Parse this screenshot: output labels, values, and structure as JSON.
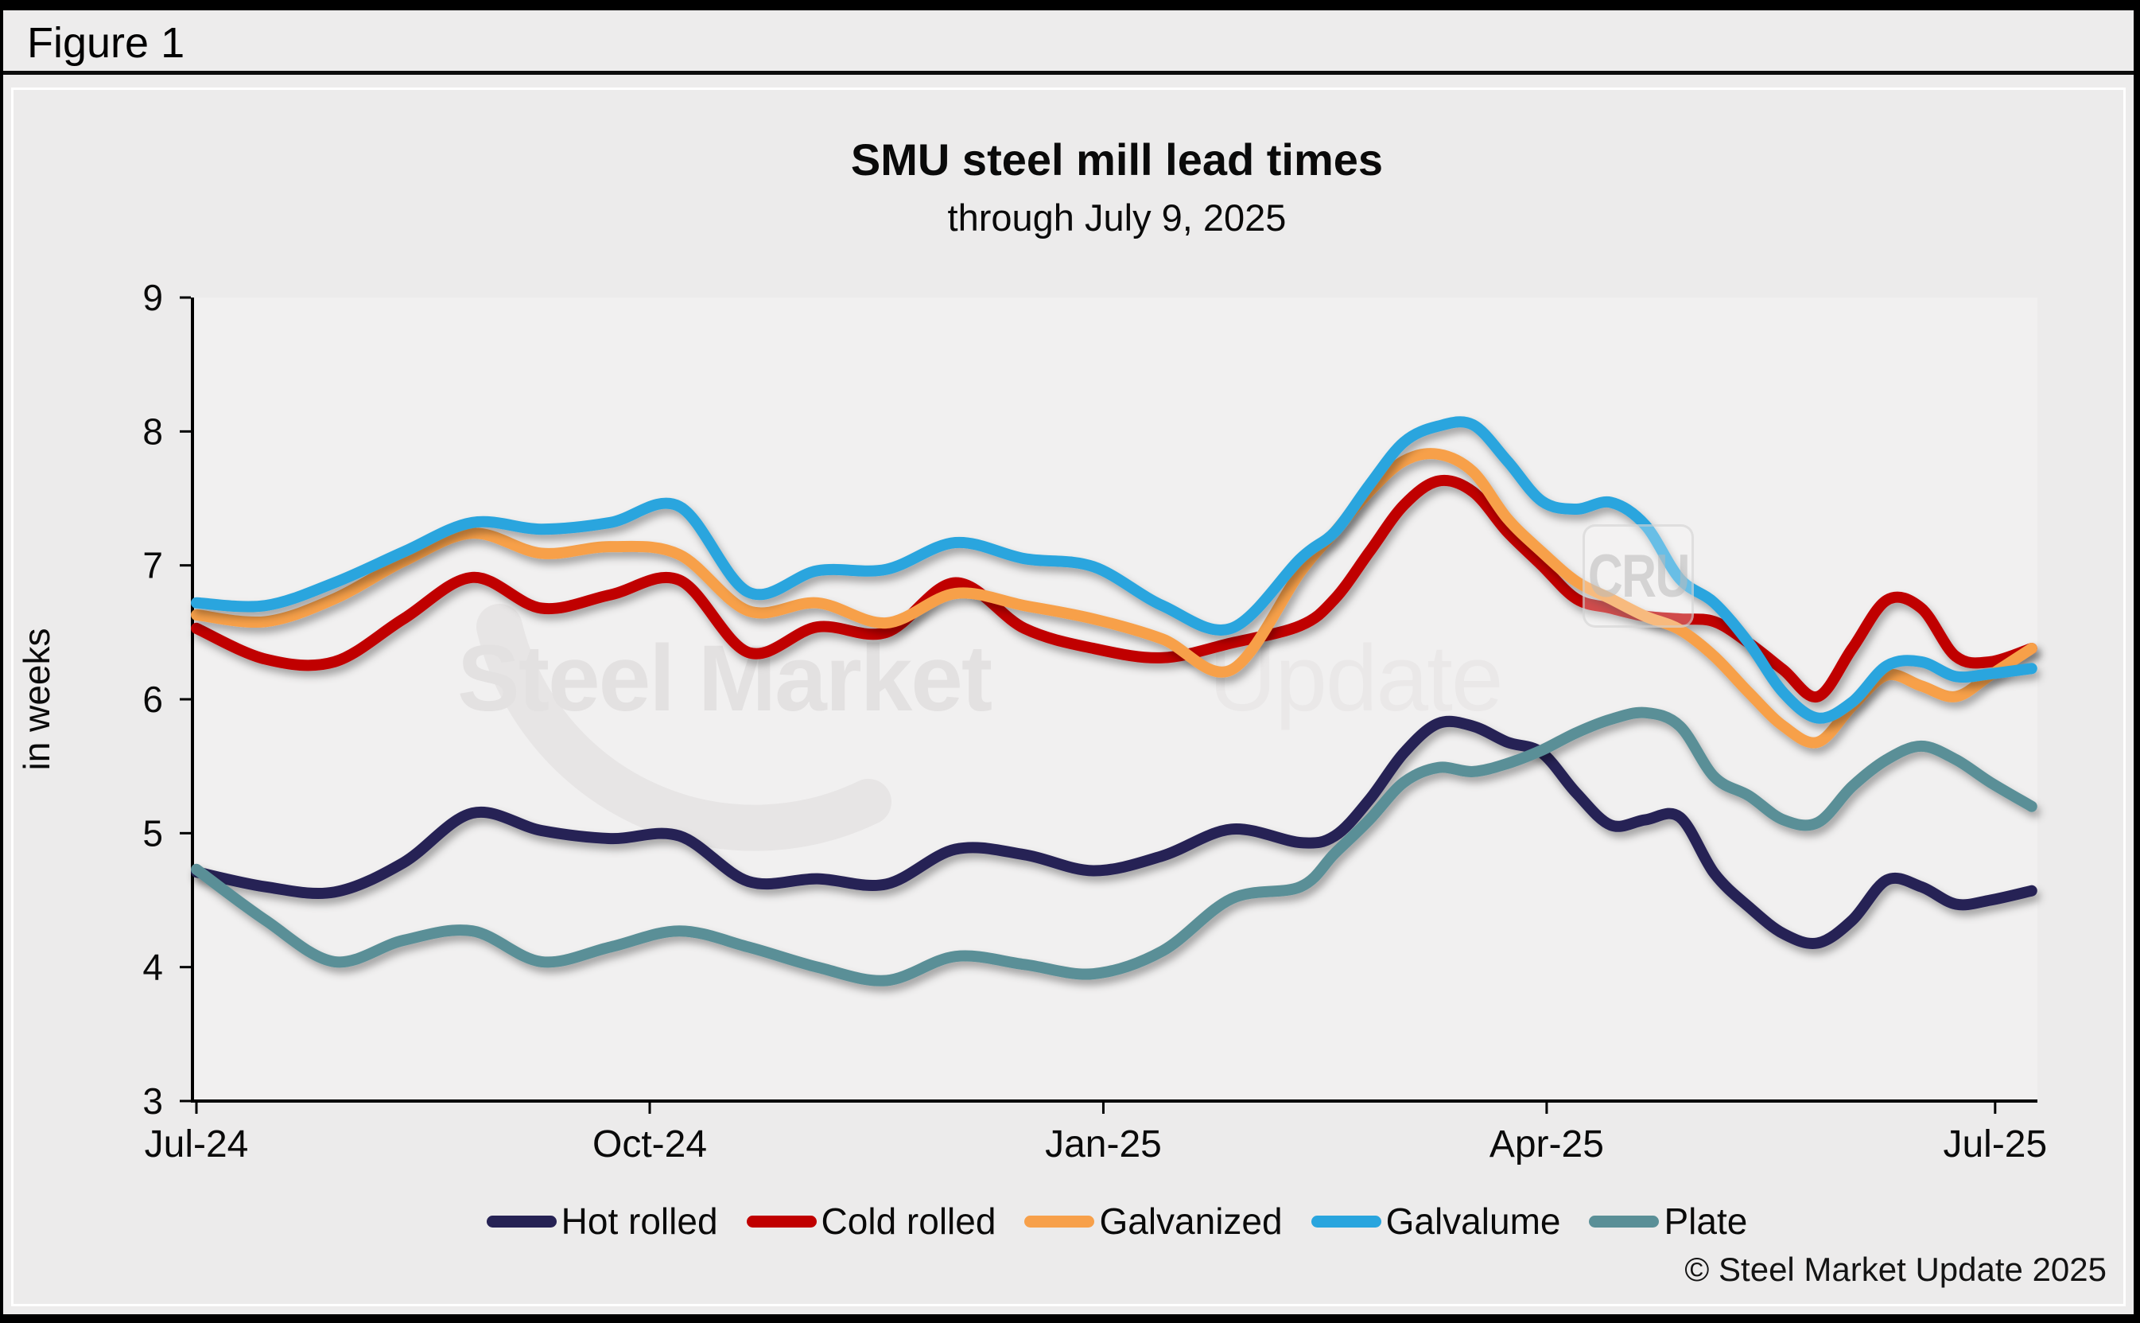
{
  "figure_label": "Figure 1",
  "copyright": "© Steel Market Update 2025",
  "watermark": {
    "text_bold": "Steel Market",
    "text_light": "Update",
    "badge": "CRU"
  },
  "colors": {
    "background": "#000000",
    "panel": "#ECEBEB",
    "plot_background": "#F1F0F0",
    "axis": "#000000",
    "watermark_bold": "#E3E1E1",
    "watermark_light": "#EAE8E8"
  },
  "chart_data": {
    "type": "line",
    "title": "SMU steel mill lead times",
    "subtitle": "through July 9, 2025",
    "ylabel": "in weeks",
    "ylim": [
      3,
      9
    ],
    "yticks": [
      3,
      4,
      5,
      6,
      7,
      8,
      9
    ],
    "grid": false,
    "legend_position": "bottom",
    "x_unit": "weeks_since_jul_2024",
    "x_ticks": [
      {
        "label": "Jul-24",
        "week": 0
      },
      {
        "label": "Oct-24",
        "week": 13.14
      },
      {
        "label": "Jan-25",
        "week": 26.29
      },
      {
        "label": "Apr-25",
        "week": 39.14
      },
      {
        "label": "Jul-25",
        "week": 52.14
      }
    ],
    "x": [
      0,
      2,
      4,
      6,
      8,
      10,
      12,
      14,
      16,
      18,
      20,
      22,
      24,
      26,
      28,
      30,
      32,
      33,
      34,
      35,
      36,
      37,
      38,
      39,
      40,
      41,
      42,
      43,
      44,
      45,
      46,
      47,
      48,
      49,
      50,
      51,
      52,
      53.2
    ],
    "series": [
      {
        "name": "Hot rolled",
        "color": "#262254",
        "values": [
          4.71,
          4.6,
          4.56,
          4.78,
          5.15,
          5.02,
          4.96,
          4.98,
          4.64,
          4.66,
          4.62,
          4.88,
          4.84,
          4.72,
          4.83,
          5.03,
          4.93,
          4.98,
          5.25,
          5.6,
          5.82,
          5.8,
          5.68,
          5.6,
          5.3,
          5.06,
          5.1,
          5.12,
          4.7,
          4.45,
          4.25,
          4.18,
          4.35,
          4.65,
          4.6,
          4.47,
          4.5,
          4.57
        ]
      },
      {
        "name": "Cold rolled",
        "color": "#C00000",
        "values": [
          6.53,
          6.3,
          6.28,
          6.6,
          6.91,
          6.68,
          6.78,
          6.89,
          6.35,
          6.54,
          6.5,
          6.87,
          6.53,
          6.38,
          6.31,
          6.42,
          6.55,
          6.75,
          7.1,
          7.45,
          7.63,
          7.55,
          7.25,
          7.0,
          6.75,
          6.68,
          6.62,
          6.6,
          6.58,
          6.42,
          6.22,
          6.02,
          6.38,
          6.74,
          6.68,
          6.32,
          6.28,
          6.38
        ]
      },
      {
        "name": "Galvanized",
        "color": "#F7A04A",
        "values": [
          6.63,
          6.58,
          6.75,
          7.03,
          7.24,
          7.09,
          7.14,
          7.08,
          6.66,
          6.72,
          6.57,
          6.79,
          6.7,
          6.6,
          6.45,
          6.22,
          6.95,
          7.25,
          7.55,
          7.78,
          7.83,
          7.7,
          7.35,
          7.1,
          6.88,
          6.75,
          6.62,
          6.52,
          6.32,
          6.05,
          5.8,
          5.68,
          5.95,
          6.18,
          6.1,
          6.02,
          6.18,
          6.38
        ]
      },
      {
        "name": "Galvalume",
        "color": "#29A5DE",
        "values": [
          6.72,
          6.7,
          6.87,
          7.1,
          7.32,
          7.27,
          7.32,
          7.44,
          6.8,
          6.96,
          6.97,
          7.17,
          7.05,
          6.99,
          6.7,
          6.53,
          7.05,
          7.25,
          7.6,
          7.92,
          8.04,
          8.05,
          7.78,
          7.48,
          7.42,
          7.47,
          7.3,
          6.9,
          6.72,
          6.42,
          6.05,
          5.86,
          5.98,
          6.25,
          6.28,
          6.17,
          6.19,
          6.23
        ]
      },
      {
        "name": "Plate",
        "color": "#5A8F97",
        "values": [
          4.73,
          4.35,
          4.04,
          4.2,
          4.27,
          4.04,
          4.15,
          4.27,
          4.15,
          4.0,
          3.9,
          4.08,
          4.02,
          3.95,
          4.12,
          4.51,
          4.6,
          4.85,
          5.1,
          5.38,
          5.49,
          5.46,
          5.52,
          5.62,
          5.75,
          5.85,
          5.9,
          5.8,
          5.42,
          5.28,
          5.1,
          5.08,
          5.35,
          5.55,
          5.65,
          5.55,
          5.38,
          5.2
        ]
      }
    ]
  }
}
